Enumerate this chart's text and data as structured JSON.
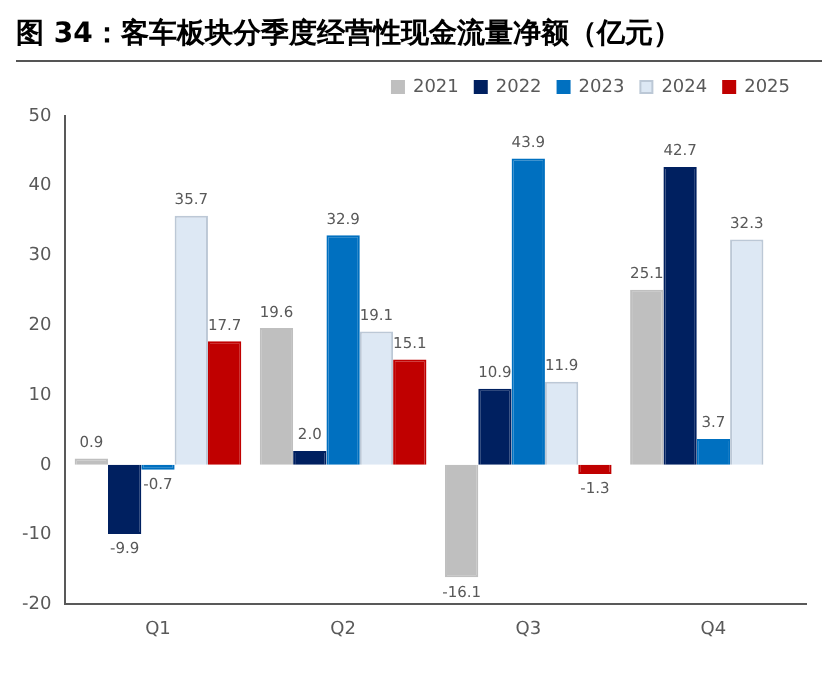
{
  "chart_data": {
    "type": "bar",
    "title": "图 34：客车板块分季度经营性现金流量净额（亿元）",
    "categories": [
      "Q1",
      "Q2",
      "Q3",
      "Q4"
    ],
    "series": [
      {
        "name": "2021",
        "color": "#bfbfbf",
        "values": [
          0.9,
          19.6,
          -16.1,
          25.1
        ],
        "value_labels": [
          "0.9",
          "19.6",
          "-16.1",
          "25.1"
        ]
      },
      {
        "name": "2022",
        "color": "#002060",
        "values": [
          -9.9,
          2,
          10.9,
          42.7
        ],
        "value_labels": [
          "-9.9",
          "2.0",
          "10.9",
          "42.7"
        ]
      },
      {
        "name": "2023",
        "color": "#0070c0",
        "values": [
          -0.7,
          32.9,
          43.9,
          3.7
        ],
        "value_labels": [
          "-0.7",
          "32.9",
          "43.9",
          "3.7"
        ]
      },
      {
        "name": "2024",
        "color": "#dde8f4",
        "values": [
          35.7,
          19.1,
          11.9,
          32.3
        ],
        "value_labels": [
          "35.7",
          "19.1",
          "11.9",
          "32.3"
        ]
      },
      {
        "name": "2025",
        "color": "#c00000",
        "values": [
          17.7,
          15.1,
          -1.3,
          null
        ],
        "value_labels": [
          "17.7",
          "15.1",
          "-1.3",
          null
        ]
      }
    ],
    "ylim": [
      -20,
      50
    ],
    "yticks": [
      -20,
      -10,
      0,
      10,
      20,
      30,
      40,
      50
    ],
    "grid": false,
    "legend": "top"
  }
}
